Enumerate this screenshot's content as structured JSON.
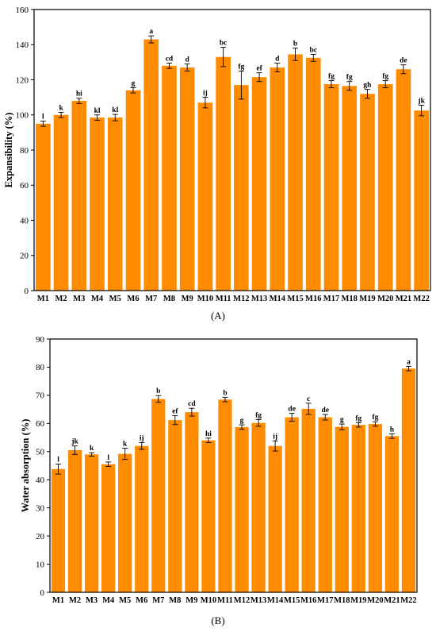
{
  "chart_data": [
    {
      "type": "bar",
      "panel": "(A)",
      "ylabel": "Expansibility (%)",
      "ylim": [
        0,
        160
      ],
      "ytick_step": 20,
      "bar_color": "#FF8C00",
      "categories": [
        "M1",
        "M2",
        "M3",
        "M4",
        "M5",
        "M6",
        "M7",
        "M8",
        "M9",
        "M10",
        "M11",
        "M12",
        "M13",
        "M14",
        "M15",
        "M16",
        "M17",
        "M18",
        "M19",
        "M20",
        "M21",
        "M22"
      ],
      "values": [
        95,
        100,
        108,
        98.5,
        98.5,
        114,
        143,
        128,
        127,
        107,
        133,
        117,
        121.5,
        127,
        134.5,
        132.5,
        117.5,
        116.5,
        112,
        117.5,
        126,
        102.5
      ],
      "errors": [
        1.5,
        1.5,
        1.5,
        1.5,
        1.8,
        1.5,
        2,
        1.5,
        2,
        3,
        5.5,
        8,
        2.5,
        2.5,
        3.5,
        2,
        2,
        2.5,
        2.5,
        2,
        2.5,
        3
      ],
      "significance": [
        "l",
        "k",
        "hi",
        "kl",
        "kl",
        "g",
        "a",
        "cd",
        "d",
        "ij",
        "bc",
        "fg",
        "ef",
        "d",
        "b",
        "bc",
        "fg",
        "fg",
        "gh",
        "fg",
        "de",
        "jk"
      ]
    },
    {
      "type": "bar",
      "panel": "(B)",
      "ylabel": "Water absorption (%)",
      "ylim": [
        0,
        90
      ],
      "ytick_step": 10,
      "bar_color": "#FF8C00",
      "categories": [
        "M1",
        "M2",
        "M3",
        "M4",
        "M5",
        "M6",
        "M7",
        "M8",
        "M9",
        "M10",
        "M11",
        "M12",
        "M13",
        "M14",
        "M15",
        "M16",
        "M17",
        "M18",
        "M19",
        "M20",
        "M21",
        "M22"
      ],
      "values": [
        43.8,
        50.5,
        49,
        45.5,
        49.2,
        52,
        68.7,
        61.2,
        64,
        54,
        68.5,
        58.7,
        60.2,
        52,
        62.2,
        65.2,
        62.2,
        58.8,
        59.5,
        59.8,
        55.5,
        79.5
      ],
      "errors": [
        1.8,
        1.5,
        0.6,
        0.8,
        2,
        1.2,
        1.2,
        1.6,
        1.4,
        0.8,
        0.8,
        0.8,
        1.2,
        1.8,
        1.4,
        2,
        1,
        1,
        0.8,
        0.8,
        0.8,
        0.8
      ],
      "significance": [
        "l",
        "jk",
        "k",
        "l",
        "k",
        "ij",
        "b",
        "ef",
        "cd",
        "hi",
        "b",
        "g",
        "fg",
        "ij",
        "de",
        "c",
        "de",
        "g",
        "fg",
        "fg",
        "h",
        "a"
      ]
    }
  ]
}
